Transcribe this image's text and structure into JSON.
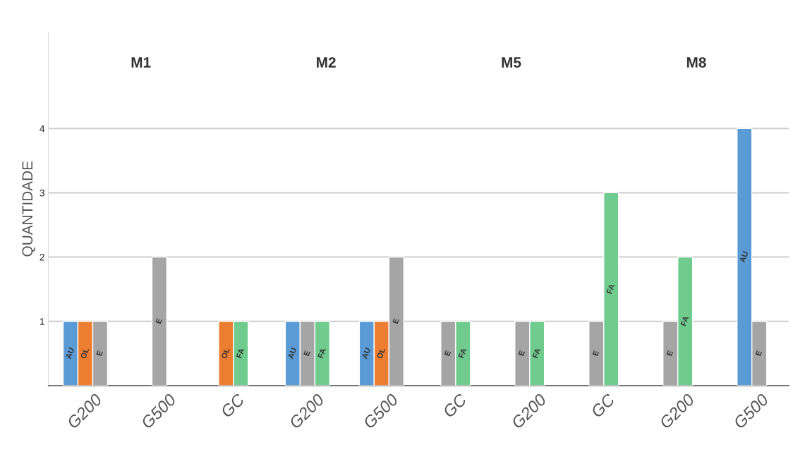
{
  "chart_data": {
    "type": "bar",
    "ylabel": "QUANTIDADE",
    "annotations": [
      "M1",
      "M2",
      "M5",
      "M8"
    ],
    "categories": [
      "G200",
      "G500",
      "GC",
      "G200",
      "G500",
      "GC",
      "G200",
      "GC",
      "G200",
      "G500"
    ],
    "series": [
      {
        "name": "AU",
        "color": "#5b9bd5",
        "values": [
          1,
          null,
          null,
          1,
          1,
          null,
          null,
          null,
          null,
          4
        ]
      },
      {
        "name": "OL",
        "color": "#ed7d31",
        "values": [
          1,
          null,
          1,
          null,
          1,
          null,
          null,
          null,
          null,
          null
        ]
      },
      {
        "name": "E",
        "color": "#a5a5a5",
        "values": [
          1,
          2,
          null,
          1,
          2,
          1,
          1,
          1,
          1,
          1
        ]
      },
      {
        "name": "FA",
        "color": "#70cb8e",
        "values": [
          null,
          null,
          1,
          1,
          null,
          1,
          1,
          3,
          2,
          null
        ]
      }
    ],
    "ylim": [
      0,
      5.5
    ],
    "yticks": [
      1,
      2,
      3,
      4
    ],
    "grid": "y",
    "legend": false
  }
}
